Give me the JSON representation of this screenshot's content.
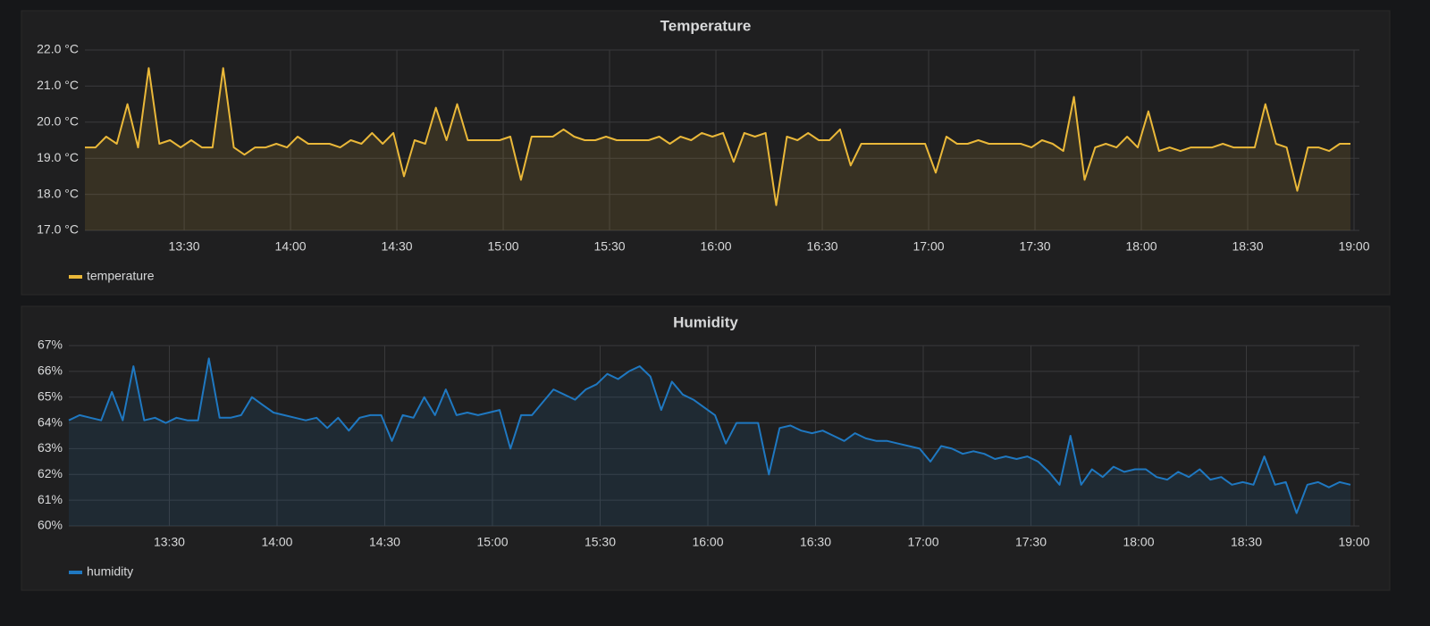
{
  "chart_data": [
    {
      "type": "line",
      "title": "Temperature",
      "x": [
        "13:02",
        "13:05",
        "13:08",
        "13:11",
        "13:14",
        "13:17",
        "13:20",
        "13:23",
        "13:26",
        "13:29",
        "13:32",
        "13:35",
        "13:38",
        "13:41",
        "13:44",
        "13:47",
        "13:50",
        "13:53",
        "13:56",
        "13:59",
        "14:02",
        "14:05",
        "14:08",
        "14:11",
        "14:14",
        "14:17",
        "14:20",
        "14:23",
        "14:26",
        "14:29",
        "14:32",
        "14:35",
        "14:38",
        "14:41",
        "14:44",
        "14:47",
        "14:50",
        "14:53",
        "14:56",
        "14:59",
        "15:02",
        "15:05",
        "15:08",
        "15:11",
        "15:14",
        "15:17",
        "15:20",
        "15:23",
        "15:26",
        "15:29",
        "15:32",
        "15:35",
        "15:38",
        "15:41",
        "15:44",
        "15:47",
        "15:50",
        "15:53",
        "15:56",
        "15:59",
        "16:02",
        "16:05",
        "16:08",
        "16:11",
        "16:14",
        "16:17",
        "16:20",
        "16:23",
        "16:26",
        "16:29",
        "16:32",
        "16:35",
        "16:38",
        "16:41",
        "16:44",
        "16:47",
        "16:50",
        "16:53",
        "16:56",
        "16:59",
        "17:02",
        "17:05",
        "17:08",
        "17:11",
        "17:14",
        "17:17",
        "17:20",
        "17:23",
        "17:26",
        "17:29",
        "17:32",
        "17:35",
        "17:38",
        "17:41",
        "17:44",
        "17:47",
        "17:50",
        "17:53",
        "17:56",
        "17:59",
        "18:02",
        "18:05",
        "18:08",
        "18:11",
        "18:14",
        "18:17",
        "18:20",
        "18:23",
        "18:26",
        "18:29",
        "18:32",
        "18:35",
        "18:38",
        "18:41",
        "18:44",
        "18:47",
        "18:50",
        "18:53",
        "18:56",
        "18:59"
      ],
      "series": [
        {
          "name": "temperature",
          "color": "#eab839",
          "values": [
            19.3,
            19.3,
            19.6,
            19.4,
            20.5,
            19.3,
            21.5,
            19.4,
            19.5,
            19.3,
            19.5,
            19.3,
            19.3,
            21.5,
            19.3,
            19.1,
            19.3,
            19.3,
            19.4,
            19.3,
            19.6,
            19.4,
            19.4,
            19.4,
            19.3,
            19.5,
            19.4,
            19.7,
            19.4,
            19.7,
            18.5,
            19.5,
            19.4,
            20.4,
            19.5,
            20.5,
            19.5,
            19.5,
            19.5,
            19.5,
            19.6,
            18.4,
            19.6,
            19.6,
            19.6,
            19.8,
            19.6,
            19.5,
            19.5,
            19.6,
            19.5,
            19.5,
            19.5,
            19.5,
            19.6,
            19.4,
            19.6,
            19.5,
            19.7,
            19.6,
            19.7,
            18.9,
            19.7,
            19.6,
            19.7,
            17.7,
            19.6,
            19.5,
            19.7,
            19.5,
            19.5,
            19.8,
            18.8,
            19.4,
            19.4,
            19.4,
            19.4,
            19.4,
            19.4,
            19.4,
            18.6,
            19.6,
            19.4,
            19.4,
            19.5,
            19.4,
            19.4,
            19.4,
            19.4,
            19.3,
            19.5,
            19.4,
            19.2,
            20.7,
            18.4,
            19.3,
            19.4,
            19.3,
            19.6,
            19.3,
            20.3,
            19.2,
            19.3,
            19.2,
            19.3,
            19.3,
            19.3,
            19.4,
            19.3,
            19.3,
            19.3,
            20.5,
            19.4,
            19.3,
            18.1,
            19.3,
            19.3,
            19.2,
            19.4,
            19.4
          ]
        }
      ],
      "xlim": [
        "13:02",
        "19:00"
      ],
      "xticks": [
        "13:30",
        "14:00",
        "14:30",
        "15:00",
        "15:30",
        "16:00",
        "16:30",
        "17:00",
        "17:30",
        "18:00",
        "18:30",
        "19:00"
      ],
      "ylim": [
        17,
        22
      ],
      "yticks": [
        {
          "value": 17,
          "label": "17.0 °C"
        },
        {
          "value": 18,
          "label": "18.0 °C"
        },
        {
          "value": 19,
          "label": "19.0 °C"
        },
        {
          "value": 20,
          "label": "20.0 °C"
        },
        {
          "value": 21,
          "label": "21.0 °C"
        },
        {
          "value": 22,
          "label": "22.0 °C"
        }
      ],
      "grid": true,
      "fill": true
    },
    {
      "type": "line",
      "title": "Humidity",
      "x": [
        "13:02",
        "13:05",
        "13:08",
        "13:11",
        "13:14",
        "13:17",
        "13:20",
        "13:23",
        "13:26",
        "13:29",
        "13:32",
        "13:35",
        "13:38",
        "13:41",
        "13:44",
        "13:47",
        "13:50",
        "13:53",
        "13:56",
        "13:59",
        "14:02",
        "14:05",
        "14:08",
        "14:11",
        "14:14",
        "14:17",
        "14:20",
        "14:23",
        "14:26",
        "14:29",
        "14:32",
        "14:35",
        "14:38",
        "14:41",
        "14:44",
        "14:47",
        "14:50",
        "14:53",
        "14:56",
        "14:59",
        "15:02",
        "15:05",
        "15:08",
        "15:11",
        "15:14",
        "15:17",
        "15:20",
        "15:23",
        "15:26",
        "15:29",
        "15:32",
        "15:35",
        "15:38",
        "15:41",
        "15:44",
        "15:47",
        "15:50",
        "15:53",
        "15:56",
        "15:59",
        "16:02",
        "16:05",
        "16:08",
        "16:11",
        "16:14",
        "16:17",
        "16:20",
        "16:23",
        "16:26",
        "16:29",
        "16:32",
        "16:35",
        "16:38",
        "16:41",
        "16:44",
        "16:47",
        "16:50",
        "16:53",
        "16:56",
        "16:59",
        "17:02",
        "17:05",
        "17:08",
        "17:11",
        "17:14",
        "17:17",
        "17:20",
        "17:23",
        "17:26",
        "17:29",
        "17:32",
        "17:35",
        "17:38",
        "17:41",
        "17:44",
        "17:47",
        "17:50",
        "17:53",
        "17:56",
        "17:59",
        "18:02",
        "18:05",
        "18:08",
        "18:11",
        "18:14",
        "18:17",
        "18:20",
        "18:23",
        "18:26",
        "18:29",
        "18:32",
        "18:35",
        "18:38",
        "18:41",
        "18:44",
        "18:47",
        "18:50",
        "18:53",
        "18:56",
        "18:59"
      ],
      "series": [
        {
          "name": "humidity",
          "color": "#1f78c1",
          "values": [
            64.1,
            64.3,
            64.2,
            64.1,
            65.2,
            64.1,
            66.2,
            64.1,
            64.2,
            64.0,
            64.2,
            64.1,
            64.1,
            66.5,
            64.2,
            64.2,
            64.3,
            65.0,
            64.7,
            64.4,
            64.3,
            64.2,
            64.1,
            64.2,
            63.8,
            64.2,
            63.7,
            64.2,
            64.3,
            64.3,
            63.3,
            64.3,
            64.2,
            65.0,
            64.3,
            65.3,
            64.3,
            64.4,
            64.3,
            64.4,
            64.5,
            63.0,
            64.3,
            64.3,
            64.8,
            65.3,
            65.1,
            64.9,
            65.3,
            65.5,
            65.9,
            65.7,
            66.0,
            66.2,
            65.8,
            64.5,
            65.6,
            65.1,
            64.9,
            64.6,
            64.3,
            63.2,
            64.0,
            64.0,
            64.0,
            62.0,
            63.8,
            63.9,
            63.7,
            63.6,
            63.7,
            63.5,
            63.3,
            63.6,
            63.4,
            63.3,
            63.3,
            63.2,
            63.1,
            63.0,
            62.5,
            63.1,
            63.0,
            62.8,
            62.9,
            62.8,
            62.6,
            62.7,
            62.6,
            62.7,
            62.5,
            62.1,
            61.6,
            63.5,
            61.6,
            62.2,
            61.9,
            62.3,
            62.1,
            62.2,
            62.2,
            61.9,
            61.8,
            62.1,
            61.9,
            62.2,
            61.8,
            61.9,
            61.6,
            61.7,
            61.6,
            62.7,
            61.6,
            61.7,
            60.5,
            61.6,
            61.7,
            61.5,
            61.7,
            61.6
          ]
        }
      ],
      "xlim": [
        "13:02",
        "19:00"
      ],
      "xticks": [
        "13:30",
        "14:00",
        "14:30",
        "15:00",
        "15:30",
        "16:00",
        "16:30",
        "17:00",
        "17:30",
        "18:00",
        "18:30",
        "19:00"
      ],
      "ylim": [
        60,
        67
      ],
      "yticks": [
        {
          "value": 60,
          "label": "60%"
        },
        {
          "value": 61,
          "label": "61%"
        },
        {
          "value": 62,
          "label": "62%"
        },
        {
          "value": 63,
          "label": "63%"
        },
        {
          "value": 64,
          "label": "64%"
        },
        {
          "value": 65,
          "label": "65%"
        },
        {
          "value": 66,
          "label": "66%"
        },
        {
          "value": 67,
          "label": "67%"
        }
      ],
      "grid": true,
      "fill": true
    }
  ]
}
